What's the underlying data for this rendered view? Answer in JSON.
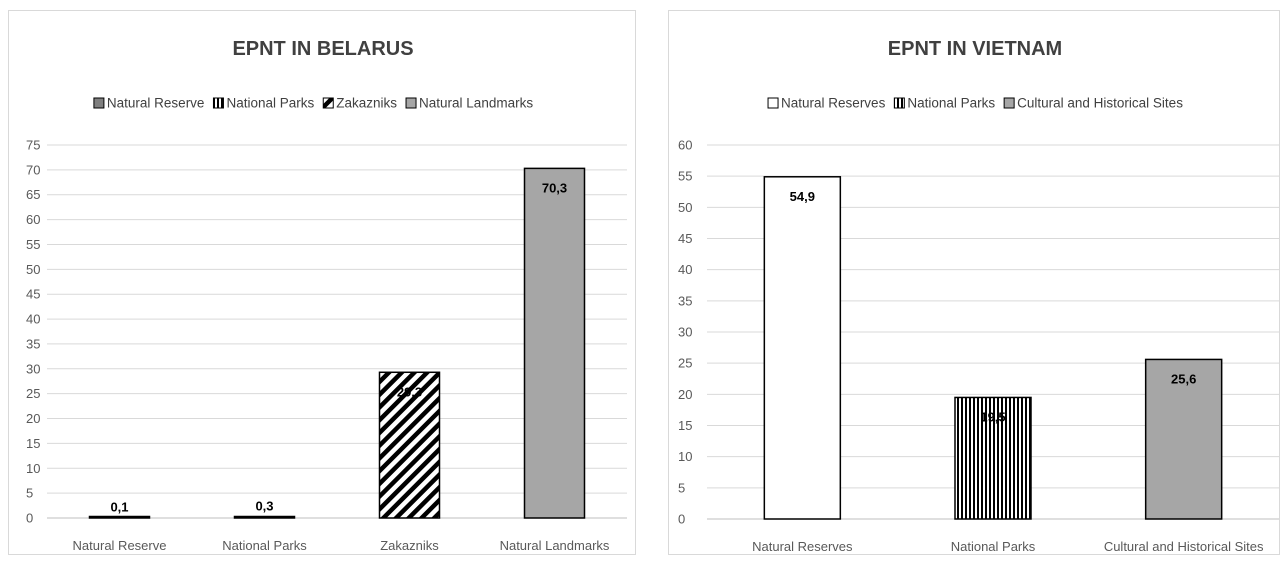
{
  "chart_data": [
    {
      "type": "bar",
      "title": "EPNT IN BELARUS",
      "categories": [
        "Natural Reserve",
        "National Parks",
        "Zakazniks",
        "Natural Landmarks"
      ],
      "values": [
        0.1,
        0.3,
        29.3,
        70.3
      ],
      "value_labels": [
        "0,1",
        "0,3",
        "29,3",
        "70,3"
      ],
      "legend": [
        "Natural Reserve",
        "National Parks",
        "Zakazniks",
        "Natural Landmarks"
      ],
      "legend_position": "top",
      "ylim": [
        0,
        75
      ],
      "yticks": [
        0,
        5,
        10,
        15,
        20,
        25,
        30,
        35,
        40,
        45,
        50,
        55,
        60,
        65,
        70,
        75
      ],
      "ytick_labels": [
        "0",
        "5",
        "10",
        "15",
        "20",
        "25",
        "30",
        "35",
        "40",
        "45",
        "50",
        "55",
        "60",
        "65",
        "70",
        "75"
      ],
      "grid": true,
      "fills": [
        "#7f7f7f",
        "vertical-stripes",
        "diagonal-stripes",
        "#a6a6a6"
      ]
    },
    {
      "type": "bar",
      "title": "EPNT IN VIETNAM",
      "categories": [
        "Natural Reserves",
        "National Parks",
        "Cultural and Historical Sites"
      ],
      "values": [
        54.9,
        19.5,
        25.6
      ],
      "value_labels": [
        "54,9",
        "19,5",
        "25,6"
      ],
      "legend": [
        "Natural Reserves",
        "National Parks",
        "Cultural and Historical Sites"
      ],
      "legend_position": "top",
      "ylim": [
        0,
        60
      ],
      "yticks": [
        0,
        5,
        10,
        15,
        20,
        25,
        30,
        35,
        40,
        45,
        50,
        55,
        60
      ],
      "ytick_labels": [
        "0",
        "5",
        "10",
        "15",
        "20",
        "25",
        "30",
        "35",
        "40",
        "45",
        "50",
        "55",
        "60"
      ],
      "grid": true,
      "fills": [
        "#ffffff",
        "vertical-stripes",
        "#a6a6a6"
      ]
    }
  ]
}
